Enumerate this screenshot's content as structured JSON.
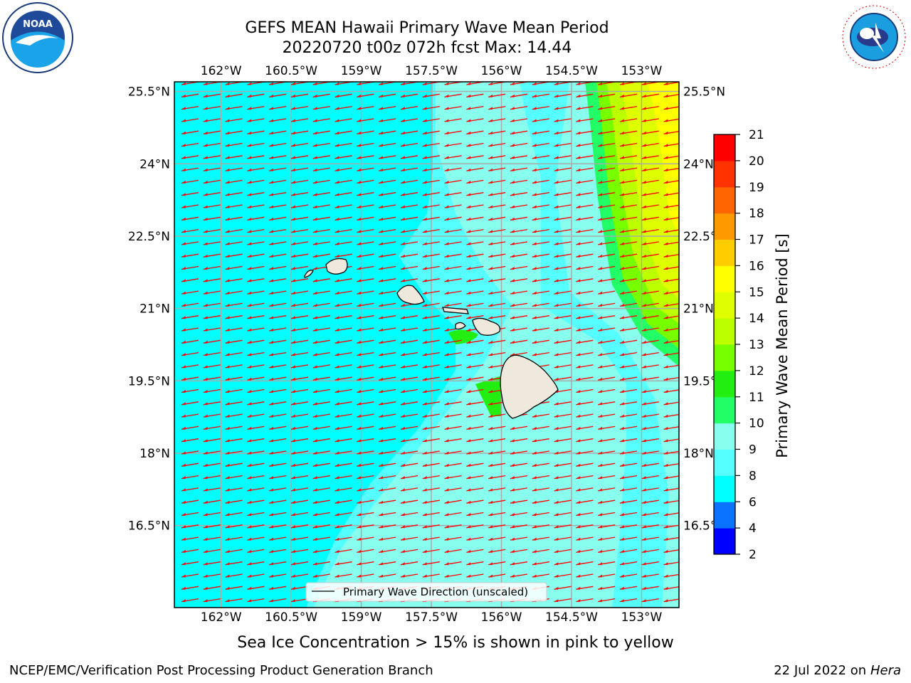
{
  "header": {
    "title_line1": "GEFS MEAN Hawaii Primary Wave Mean Period",
    "title_line2": "20220720 t00z 072h fcst   Max: 14.44"
  },
  "logos": {
    "left": {
      "name": "NOAA",
      "text": "NOAA"
    },
    "right": {
      "name": "NATIONAL WEATHER SERVICE",
      "text": "NATIONAL WEATHER SERVICE"
    }
  },
  "map": {
    "lon_labels": [
      "162°W",
      "160.5°W",
      "159°W",
      "157.5°W",
      "156°W",
      "154.5°W",
      "153°W"
    ],
    "lon_values": [
      -162,
      -160.5,
      -159,
      -157.5,
      -156,
      -154.5,
      -153
    ],
    "lat_labels": [
      "25.5°N",
      "24°N",
      "22.5°N",
      "21°N",
      "19.5°N",
      "18°N",
      "16.5°N"
    ],
    "lat_values": [
      25.5,
      24,
      22.5,
      21,
      19.5,
      18,
      16.5
    ],
    "lon_range": [
      -163,
      -152.2
    ],
    "lat_range": [
      14.8,
      25.7
    ],
    "legend_label": "Primary Wave Direction (unscaled)",
    "arrow_color": "#ff0000",
    "land_color": "#efe9dd",
    "grid_color": "#aaaaaa"
  },
  "colorbar": {
    "label": "Primary Wave Mean Period [s]",
    "ticks": [
      "2",
      "4",
      "6",
      "8",
      "9",
      "10",
      "11",
      "12",
      "13",
      "14",
      "15",
      "16",
      "17",
      "18",
      "19",
      "20",
      "21"
    ],
    "colors": [
      "#0000ff",
      "#0a73ff",
      "#00ffff",
      "#55ffff",
      "#88ffee",
      "#22ff66",
      "#22ee11",
      "#77ff00",
      "#bbff00",
      "#ddff00",
      "#ffff00",
      "#ffcc00",
      "#ff9900",
      "#ff6600",
      "#ff3300",
      "#ff0000"
    ]
  },
  "note": "Sea Ice Concentration > 15% is shown in pink to yellow",
  "footer": {
    "left": "NCEP/EMC/Verification Post Processing Product Generation Branch",
    "right_prefix": "22 Jul 2022 on ",
    "right_italic": "Hera"
  }
}
